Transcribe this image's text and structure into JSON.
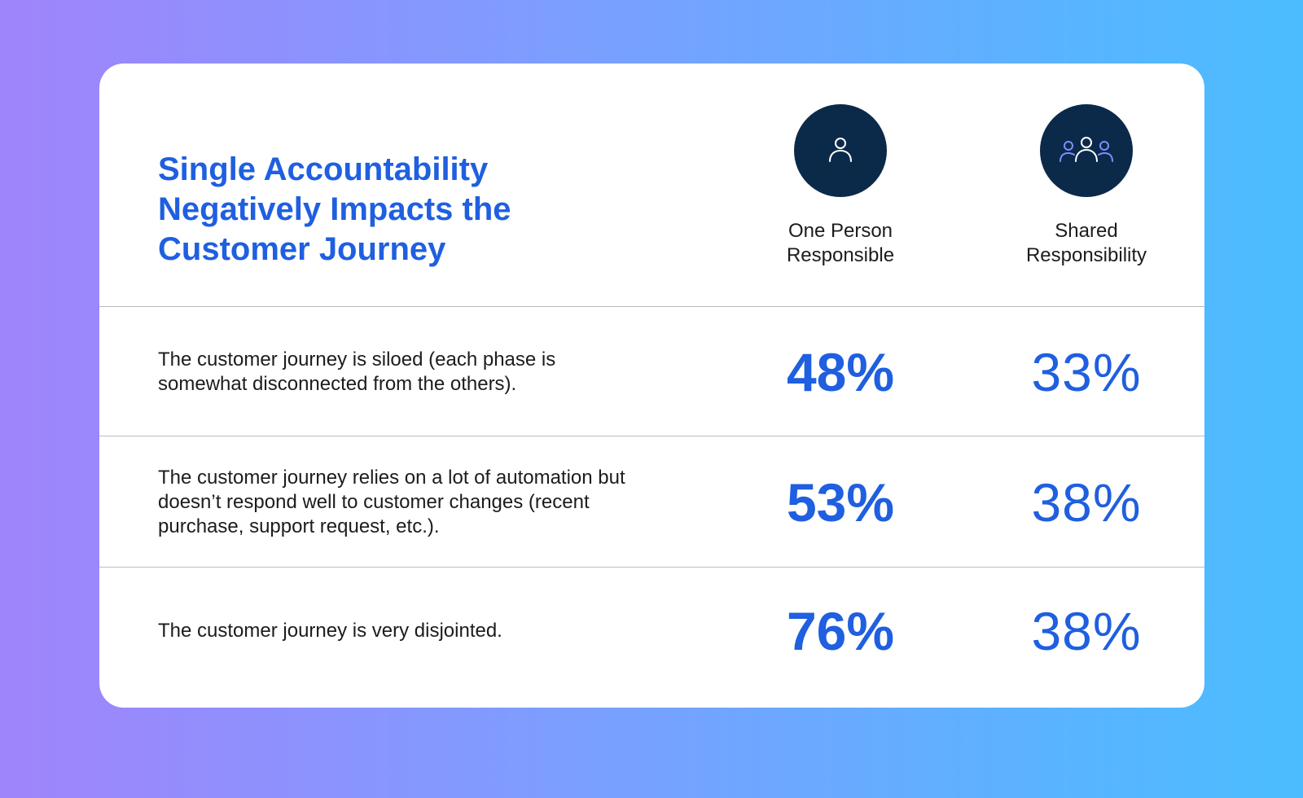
{
  "chart_data": {
    "type": "table",
    "title": "Single Accountability Negatively Impacts the Customer Journey",
    "columns": [
      {
        "label": "One Person\nResponsible",
        "icon": "person-icon"
      },
      {
        "label": "Shared\nResponsibility",
        "icon": "group-icon"
      }
    ],
    "rows": [
      {
        "statement": "The customer journey is siloed (each phase is somewhat disconnected from the others).",
        "one_person": "48%",
        "shared": "33%"
      },
      {
        "statement": "The customer journey relies on a lot of automation but doesn’t respond well to customer changes (recent purchase, support request, etc.).",
        "one_person": "53%",
        "shared": "38%"
      },
      {
        "statement": "The customer journey is very disjointed.",
        "one_person": "76%",
        "shared": "38%"
      }
    ],
    "values_numeric": {
      "one_person": [
        48,
        53,
        76
      ],
      "shared": [
        33,
        38,
        38
      ],
      "unit": "%"
    }
  },
  "colors": {
    "accent_blue": "#1f5fe0",
    "icon_circle": "#0b2a4a",
    "icon_stroke_light": "#ffffff",
    "icon_stroke_accent": "#7f8cff",
    "divider": "#b9bcc2",
    "background_left": "#a084fb",
    "background_right": "#4bbdff"
  }
}
